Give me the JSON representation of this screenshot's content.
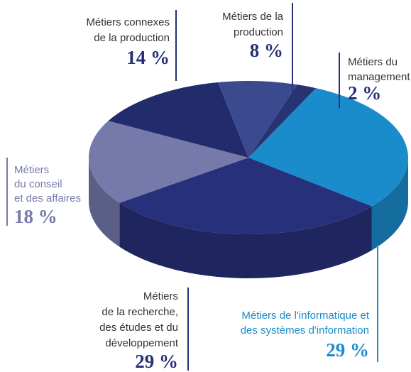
{
  "chart_data": {
    "type": "pie3d",
    "categories": [
      [
        "Métiers de l'informatique et",
        "des systèmes d'information"
      ],
      [
        "Métiers",
        "de la recherche,",
        "des études et du",
        "développement"
      ],
      [
        "Métiers",
        "du conseil",
        "et des affaires"
      ],
      [
        "Métiers connexes",
        "de la production"
      ],
      [
        "Métiers de la",
        "production"
      ],
      [
        "Métiers du",
        "management"
      ]
    ],
    "values": [
      29,
      29,
      18,
      14,
      8,
      2
    ],
    "value_labels": [
      "29 %",
      "29 %",
      "18 %",
      "14 %",
      "8 %",
      "2 %"
    ],
    "colors": [
      "#1a8ccb",
      "#27307a",
      "#767aab",
      "#222c6c",
      "#3b4a8e",
      "#283372"
    ]
  }
}
